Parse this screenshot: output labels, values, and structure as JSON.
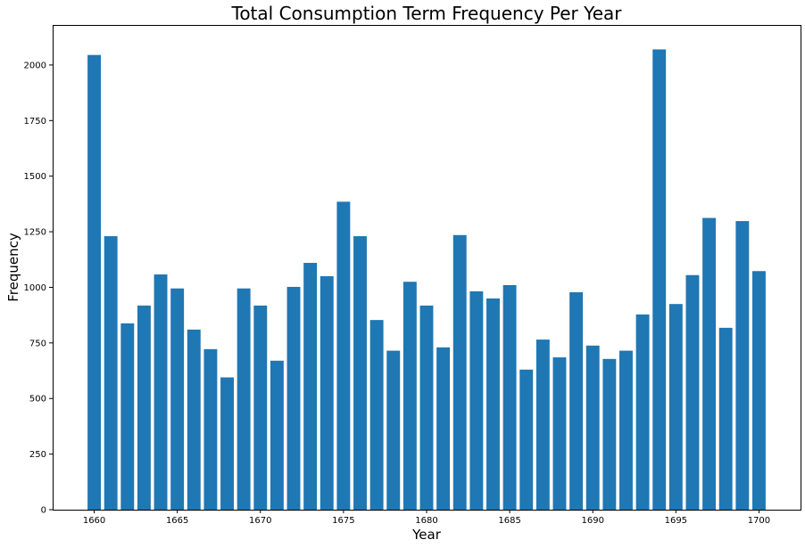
{
  "chart_data": {
    "type": "bar",
    "title": "Total Consumption Term Frequency Per Year",
    "xlabel": "Year",
    "ylabel": "Frequency",
    "x": [
      1660,
      1661,
      1662,
      1663,
      1664,
      1665,
      1666,
      1667,
      1668,
      1669,
      1670,
      1671,
      1672,
      1673,
      1674,
      1675,
      1676,
      1677,
      1678,
      1679,
      1680,
      1681,
      1682,
      1683,
      1684,
      1685,
      1686,
      1687,
      1688,
      1689,
      1690,
      1691,
      1692,
      1693,
      1694,
      1695,
      1696,
      1697,
      1698,
      1699,
      1700
    ],
    "values": [
      2045,
      1230,
      838,
      918,
      1058,
      995,
      810,
      722,
      595,
      995,
      918,
      670,
      1002,
      1110,
      1050,
      1385,
      1230,
      853,
      715,
      1025,
      918,
      730,
      1235,
      982,
      950,
      1010,
      630,
      765,
      685,
      978,
      738,
      678,
      715,
      878,
      2070,
      925,
      1055,
      1312,
      818,
      1298,
      1073
    ],
    "xlim": [
      1657.5,
      1702.5
    ],
    "ylim": [
      0,
      2180
    ],
    "xticks": [
      "1660",
      "1665",
      "1670",
      "1675",
      "1680",
      "1685",
      "1690",
      "1695",
      "1700"
    ],
    "yticks": [
      "0",
      "250",
      "500",
      "750",
      "1000",
      "1250",
      "1500",
      "1750",
      "2000"
    ],
    "bar_color": "#1f77b4",
    "grid": false
  }
}
